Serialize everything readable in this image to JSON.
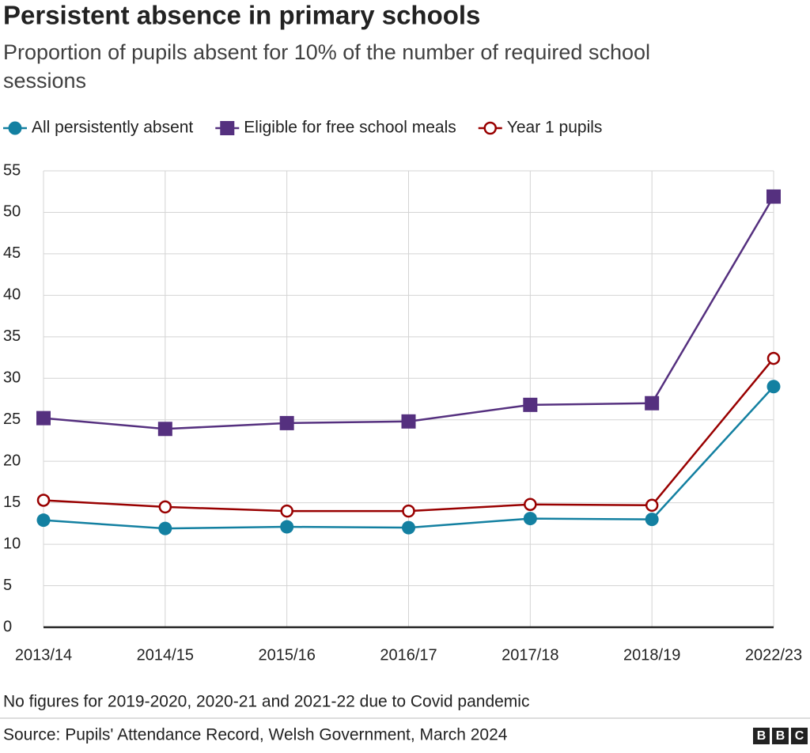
{
  "chart_data": {
    "type": "line",
    "title": "Persistent absence in primary schools",
    "subtitle": [
      "Proportion of pupils absent for 10% of the number of required school",
      "sessions"
    ],
    "categories": [
      "2013/14",
      "2014/15",
      "2015/16",
      "2016/17",
      "2017/18",
      "2018/19",
      "2022/23"
    ],
    "series": [
      {
        "name": "All persistently absent",
        "color": "#1380a1",
        "marker": "circle",
        "values": [
          12.9,
          11.9,
          12.1,
          12.0,
          13.1,
          13.0,
          29.0
        ]
      },
      {
        "name": "Eligible for free school meals",
        "color": "#55307f",
        "marker": "square",
        "values": [
          25.2,
          23.9,
          24.6,
          24.8,
          26.8,
          27.0,
          51.9
        ]
      },
      {
        "name": "Year 1 pupils",
        "color": "#990000",
        "marker": "open-circle",
        "values": [
          15.3,
          14.5,
          14.0,
          14.0,
          14.8,
          14.7,
          32.4
        ]
      }
    ],
    "ylim": [
      0,
      55
    ],
    "yticks": [
      0,
      5,
      10,
      15,
      20,
      25,
      30,
      35,
      40,
      45,
      50,
      55
    ],
    "grid": true,
    "note": "No figures for 2019-2020, 2020-21 and 2021-22 due to Covid pandemic",
    "source": "Source: Pupils' Attendance Record, Welsh Government, March 2024",
    "logo": [
      "B",
      "B",
      "C"
    ]
  }
}
